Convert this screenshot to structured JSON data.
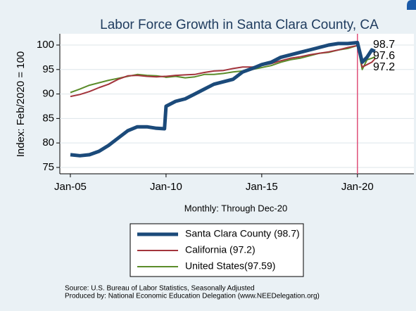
{
  "chart_data": {
    "type": "line",
    "title": "Labor Force Growth in Santa Clara County, CA",
    "ylabel": "Index: Feb/2020 = 100",
    "xlabel": "Monthly: Through Dec-20",
    "x": [
      2005,
      2005.5,
      2006,
      2006.5,
      2007,
      2007.5,
      2008,
      2008.5,
      2009,
      2009.5,
      2009.92,
      2010,
      2010.5,
      2011,
      2011.5,
      2012,
      2012.5,
      2013,
      2013.5,
      2014,
      2014.5,
      2015,
      2015.5,
      2016,
      2016.5,
      2017,
      2017.5,
      2018,
      2018.5,
      2019,
      2019.5,
      2020,
      2020.25,
      2020.5,
      2020.75,
      2020.92
    ],
    "series": [
      {
        "name": "Santa Clara County (98.7)",
        "color": "#1b4a7a",
        "width": 5,
        "values": [
          77.6,
          77.4,
          77.6,
          78.3,
          79.5,
          81,
          82.5,
          83.3,
          83.3,
          83,
          82.9,
          87.5,
          88.5,
          89,
          90,
          91,
          92,
          92.5,
          93,
          94.5,
          95.2,
          96,
          96.5,
          97.5,
          98,
          98.5,
          99,
          99.5,
          100,
          100.3,
          100.3,
          100.5,
          96.5,
          97.5,
          99,
          98.7
        ]
      },
      {
        "name": "California (97.2)",
        "color": "#a3343c",
        "width": 2,
        "values": [
          89.5,
          89.9,
          90.5,
          91.3,
          92,
          93,
          93.7,
          93.8,
          93.6,
          93.5,
          93.6,
          93.6,
          93.8,
          93.9,
          94,
          94.4,
          94.7,
          94.8,
          95.2,
          95.5,
          95.5,
          95.8,
          96.2,
          96.8,
          97.3,
          97.6,
          98,
          98.3,
          98.6,
          99,
          99.5,
          99.9,
          95.5,
          96,
          96.5,
          97.2
        ]
      },
      {
        "name": "United States(97.59)",
        "color": "#5b8c2a",
        "width": 2,
        "values": [
          90.3,
          91,
          91.8,
          92.3,
          92.8,
          93.2,
          93.6,
          94,
          93.8,
          93.7,
          93.5,
          93.4,
          93.6,
          93.3,
          93.5,
          94,
          94,
          94.2,
          94.5,
          94.7,
          95,
          95.4,
          95.8,
          96.5,
          97,
          97.3,
          97.8,
          98.3,
          98.5,
          99,
          99.3,
          99.9,
          95,
          97,
          97.3,
          97.6
        ]
      }
    ],
    "end_labels": [
      "98.7",
      "97.6",
      "97.2"
    ],
    "vline": {
      "value": 2020,
      "color": "#e0507a"
    },
    "xlim": [
      2004.45,
      2022.95
    ],
    "ylim": [
      73.7,
      102.3
    ],
    "xticks": [
      {
        "value": 2005,
        "label": "Jan-05"
      },
      {
        "value": 2010,
        "label": "Jan-10"
      },
      {
        "value": 2015,
        "label": "Jan-15"
      },
      {
        "value": 2020,
        "label": "Jan-20"
      }
    ],
    "yticks": [
      75,
      80,
      85,
      90,
      95,
      100
    ],
    "grid": true,
    "legend": "bottom",
    "source": [
      "Source: U.S. Bureau of Labor Statistics, Seasonally Adjusted",
      "Produced by: National Economic Education Delegation (www.NEEDelegation.org)"
    ]
  }
}
